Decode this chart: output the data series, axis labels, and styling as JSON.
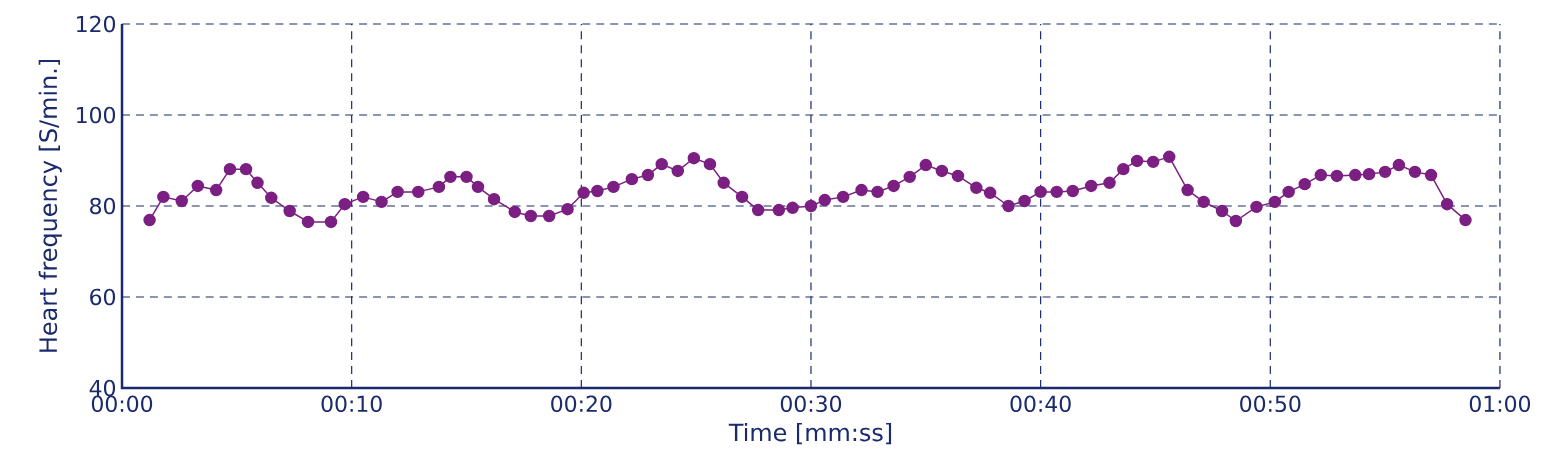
{
  "chart_data": {
    "type": "line",
    "xlabel": "Time [mm:ss]",
    "ylabel": "Heart frequency [S/min.]",
    "x": [
      1.2,
      1.8,
      2.6,
      3.3,
      4.1,
      4.7,
      5.4,
      5.9,
      6.5,
      7.3,
      8.1,
      9.1,
      9.7,
      10.5,
      11.3,
      12.0,
      12.9,
      13.8,
      14.3,
      15.0,
      15.5,
      16.2,
      17.1,
      17.8,
      18.6,
      19.4,
      20.1,
      20.7,
      21.4,
      22.2,
      22.9,
      23.5,
      24.2,
      24.9,
      25.6,
      26.2,
      27.0,
      27.7,
      28.6,
      29.2,
      30.0,
      30.6,
      31.4,
      32.2,
      32.9,
      33.6,
      34.3,
      35.0,
      35.7,
      36.4,
      37.2,
      37.8,
      38.6,
      39.3,
      40.0,
      40.7,
      41.4,
      42.2,
      43.0,
      43.6,
      44.2,
      44.9,
      45.6,
      46.4,
      47.1,
      47.9,
      48.5,
      49.4,
      50.2,
      50.8,
      51.5,
      52.2,
      52.9,
      53.7,
      54.3,
      55.0,
      55.6,
      56.3,
      57.0,
      57.7,
      58.5
    ],
    "values": [
      76.9,
      82.0,
      81.1,
      84.4,
      83.5,
      88.1,
      88.1,
      85.1,
      81.8,
      78.9,
      76.5,
      76.5,
      80.4,
      82.0,
      80.9,
      83.1,
      83.1,
      84.2,
      86.4,
      86.4,
      84.2,
      81.5,
      78.7,
      77.8,
      77.8,
      79.3,
      82.9,
      83.3,
      84.2,
      85.9,
      86.8,
      89.2,
      87.7,
      90.5,
      89.2,
      85.1,
      82.0,
      79.1,
      79.1,
      79.6,
      80.0,
      81.3,
      82.0,
      83.5,
      83.1,
      84.4,
      86.4,
      89.0,
      87.7,
      86.6,
      84.0,
      82.9,
      80.0,
      81.1,
      83.1,
      83.1,
      83.3,
      84.4,
      85.1,
      88.1,
      89.9,
      89.7,
      90.8,
      83.5,
      80.9,
      78.9,
      76.7,
      79.8,
      80.9,
      83.1,
      84.8,
      86.8,
      86.6,
      86.8,
      87.0,
      87.5,
      89.0,
      87.5,
      86.8,
      80.4,
      76.9
    ],
    "color": "#7b1f82",
    "marker": "circle",
    "line_style": "solid",
    "xlim": [
      0,
      60
    ],
    "xticks": [
      {
        "value": 0,
        "label": "00:00"
      },
      {
        "value": 10,
        "label": "00:10"
      },
      {
        "value": 20,
        "label": "00:20"
      },
      {
        "value": 30,
        "label": "00:30"
      },
      {
        "value": 40,
        "label": "00:40"
      },
      {
        "value": 50,
        "label": "00:50"
      },
      {
        "value": 60,
        "label": "01:00"
      }
    ],
    "ylim": [
      40,
      120
    ],
    "yticks": [
      40,
      60,
      80,
      100,
      120
    ],
    "grid": true
  }
}
